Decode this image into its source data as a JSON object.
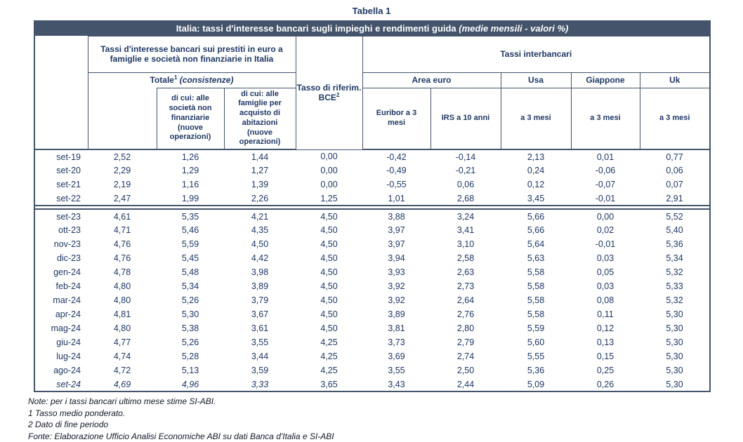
{
  "page_title": "Tabella 1",
  "colors": {
    "banner_bg": "#44546A",
    "border": "#44546A",
    "text_navy": "#1F3864"
  },
  "table": {
    "banner": {
      "main": "Italia: tassi d'interesse bancari sugli impieghi e rendimenti guida",
      "italic": "(medie mensili - valori %)"
    },
    "header": {
      "loans_group": "Tassi d'interesse bancari sui prestiti in euro a famiglie e società non finanziarie in Italia",
      "totale": {
        "label": "Totale",
        "sup": "1",
        "note": "(consistenze)"
      },
      "subcol_societa": "di cui: alle società non finanziarie (nuove operazioni)",
      "subcol_famiglie": "di cui: alle famiglie per acquisto di abitazioni (nuove operazioni)",
      "bce": {
        "line1": "Tasso di riferim.",
        "line2": "BCE",
        "sup": "2"
      },
      "interbank_group": "Tassi interbancari",
      "area_euro": "Area euro",
      "usa": "Usa",
      "giappone": "Giappone",
      "uk": "Uk",
      "euribor": "Euribor a 3 mesi",
      "irs": "IRS a 10 anni",
      "usa_3m": "a 3 mesi",
      "giappone_3m": "a 3 mesi",
      "uk_3m": "a 3 mesi"
    },
    "sections": [
      {
        "rows": [
          {
            "cells": [
              "set-19",
              "2,52",
              "1,26",
              "1,44",
              "0,00",
              "-0,42",
              "-0,14",
              "2,13",
              "0,01",
              "0,77"
            ]
          },
          {
            "cells": [
              "set-20",
              "2,29",
              "1,29",
              "1,27",
              "0,00",
              "-0,49",
              "-0,21",
              "0,24",
              "-0,06",
              "0,06"
            ]
          },
          {
            "cells": [
              "set-21",
              "2,19",
              "1,16",
              "1,39",
              "0,00",
              "-0,55",
              "0,06",
              "0,12",
              "-0,07",
              "0,07"
            ]
          },
          {
            "cells": [
              "set-22",
              "2,47",
              "1,99",
              "2,26",
              "1,25",
              "1,01",
              "2,68",
              "3,45",
              "-0,01",
              "2,91"
            ]
          }
        ]
      },
      {
        "rows": [
          {
            "cells": [
              "set-23",
              "4,61",
              "5,35",
              "4,21",
              "4,50",
              "3,88",
              "3,24",
              "5,66",
              "0,00",
              "5,52"
            ]
          },
          {
            "cells": [
              "ott-23",
              "4,71",
              "5,46",
              "4,35",
              "4,50",
              "3,97",
              "3,41",
              "5,66",
              "0,02",
              "5,40"
            ]
          },
          {
            "cells": [
              "nov-23",
              "4,76",
              "5,59",
              "4,50",
              "4,50",
              "3,97",
              "3,10",
              "5,64",
              "-0,01",
              "5,36"
            ]
          },
          {
            "cells": [
              "dic-23",
              "4,76",
              "5,45",
              "4,42",
              "4,50",
              "3,94",
              "2,58",
              "5,63",
              "0,03",
              "5,34"
            ]
          },
          {
            "cells": [
              "gen-24",
              "4,78",
              "5,48",
              "3,98",
              "4,50",
              "3,93",
              "2,63",
              "5,58",
              "0,05",
              "5,32"
            ]
          },
          {
            "cells": [
              "feb-24",
              "4,80",
              "5,34",
              "3,89",
              "4,50",
              "3,92",
              "2,73",
              "5,58",
              "0,03",
              "5,33"
            ]
          },
          {
            "cells": [
              "mar-24",
              "4,80",
              "5,26",
              "3,79",
              "4,50",
              "3,92",
              "2,64",
              "5,58",
              "0,08",
              "5,32"
            ]
          },
          {
            "cells": [
              "apr-24",
              "4,81",
              "5,30",
              "3,67",
              "4,50",
              "3,89",
              "2,76",
              "5,58",
              "0,11",
              "5,30"
            ]
          },
          {
            "cells": [
              "mag-24",
              "4,80",
              "5,38",
              "3,61",
              "4,50",
              "3,81",
              "2,80",
              "5,59",
              "0,12",
              "5,30"
            ]
          },
          {
            "cells": [
              "giu-24",
              "4,77",
              "5,26",
              "3,55",
              "4,25",
              "3,73",
              "2,79",
              "5,60",
              "0,13",
              "5,30"
            ]
          },
          {
            "cells": [
              "lug-24",
              "4,74",
              "5,28",
              "3,44",
              "4,25",
              "3,69",
              "2,74",
              "5,55",
              "0,15",
              "5,30"
            ]
          },
          {
            "cells": [
              "ago-24",
              "4,72",
              "5,13",
              "3,59",
              "4,25",
              "3,55",
              "2,50",
              "5,36",
              "0,25",
              "5,30"
            ]
          },
          {
            "cells": [
              "set-24",
              "4,69",
              "4,96",
              "3,33",
              "3,65",
              "3,43",
              "2,44",
              "5,09",
              "0,26",
              "5,30"
            ],
            "italic": [
              0,
              1,
              2,
              3
            ]
          }
        ]
      }
    ]
  },
  "notes": [
    "Note: per i tassi bancari ultimo mese stime SI-ABI.",
    "1 Tasso medio ponderato.",
    "2 Dato di fine periodo",
    "Fonte: Elaborazione Ufficio Analisi Economiche ABI su dati Banca d'Italia e SI-ABI"
  ]
}
